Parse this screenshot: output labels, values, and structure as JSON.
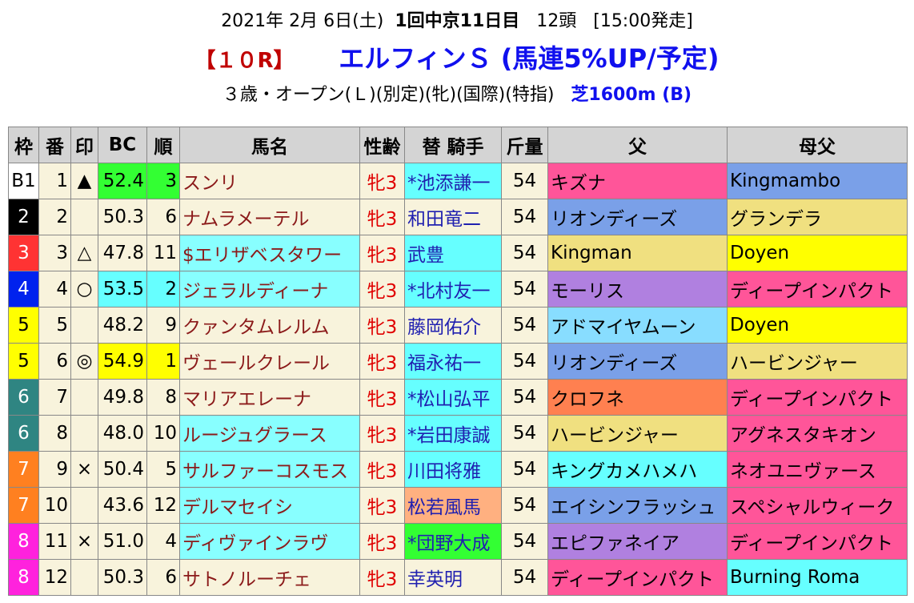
{
  "header": {
    "date": "2021年 2月 6日(土)",
    "meeting": "1回中京11日目",
    "runners": "12頭",
    "start": "[15:00発走]",
    "race": "【１０R】",
    "name": "エルフィンＳ (馬連5%UP/予定)",
    "conditions": "３歳・オープン(Ｌ)(別定)(牝)(国際)(特指)",
    "course": "芝1600m (B)"
  },
  "table": {
    "columns": [
      "枠",
      "番",
      "印",
      "BC",
      "順",
      "馬名",
      "性齢",
      "替 騎手",
      "斤量",
      "父",
      "母父"
    ],
    "rows": [
      [
        "B1",
        "1",
        "▲",
        "52.4",
        "3",
        "スンリ",
        "牝3",
        "*池添謙一",
        "54",
        "キズナ",
        "Kingmambo"
      ],
      [
        "2",
        "2",
        "",
        "50.3",
        "6",
        "ナムラメーテル",
        "牝3",
        "和田竜二",
        "54",
        "リオンディーズ",
        "グランデラ"
      ],
      [
        "3",
        "3",
        "△",
        "47.8",
        "11",
        "$エリザベスタワー",
        "牝3",
        "武豊",
        "54",
        "Kingman",
        "Doyen"
      ],
      [
        "4",
        "4",
        "○",
        "53.5",
        "2",
        "ジェラルディーナ",
        "牝3",
        "*北村友一",
        "54",
        "モーリス",
        "ディープインパクト"
      ],
      [
        "5",
        "5",
        "",
        "48.2",
        "9",
        "クァンタムレルム",
        "牝3",
        "藤岡佑介",
        "54",
        "アドマイヤムーン",
        "Doyen"
      ],
      [
        "5",
        "6",
        "◎",
        "54.9",
        "1",
        "ヴェールクレール",
        "牝3",
        "福永祐一",
        "54",
        "リオンディーズ",
        "ハービンジャー"
      ],
      [
        "6",
        "7",
        "",
        "49.8",
        "8",
        "マリアエレーナ",
        "牝3",
        "*松山弘平",
        "54",
        "クロフネ",
        "ディープインパクト"
      ],
      [
        "6",
        "8",
        "",
        "48.0",
        "10",
        "ルージュグラース",
        "牝3",
        "*岩田康誠",
        "54",
        "ハービンジャー",
        "アグネスタキオン"
      ],
      [
        "7",
        "9",
        "×",
        "50.4",
        "5",
        "サルファーコスモス",
        "牝3",
        "川田将雅",
        "54",
        "キングカメハメハ",
        "ネオユニヴァース"
      ],
      [
        "7",
        "10",
        "",
        "43.6",
        "12",
        "デルマセイシ",
        "牝3",
        "松若風馬",
        "54",
        "エイシンフラッシュ",
        "スペシャルウィーク"
      ],
      [
        "8",
        "11",
        "×",
        "51.0",
        "4",
        "ディヴァインラヴ",
        "牝3",
        "*団野大成",
        "54",
        "エピファネイア",
        "ディープインパクト"
      ],
      [
        "8",
        "12",
        "",
        "50.3",
        "6",
        "サトノルーチェ",
        "牝3",
        "幸英明",
        "54",
        "ディープインパクト",
        "Burning Roma"
      ]
    ]
  }
}
